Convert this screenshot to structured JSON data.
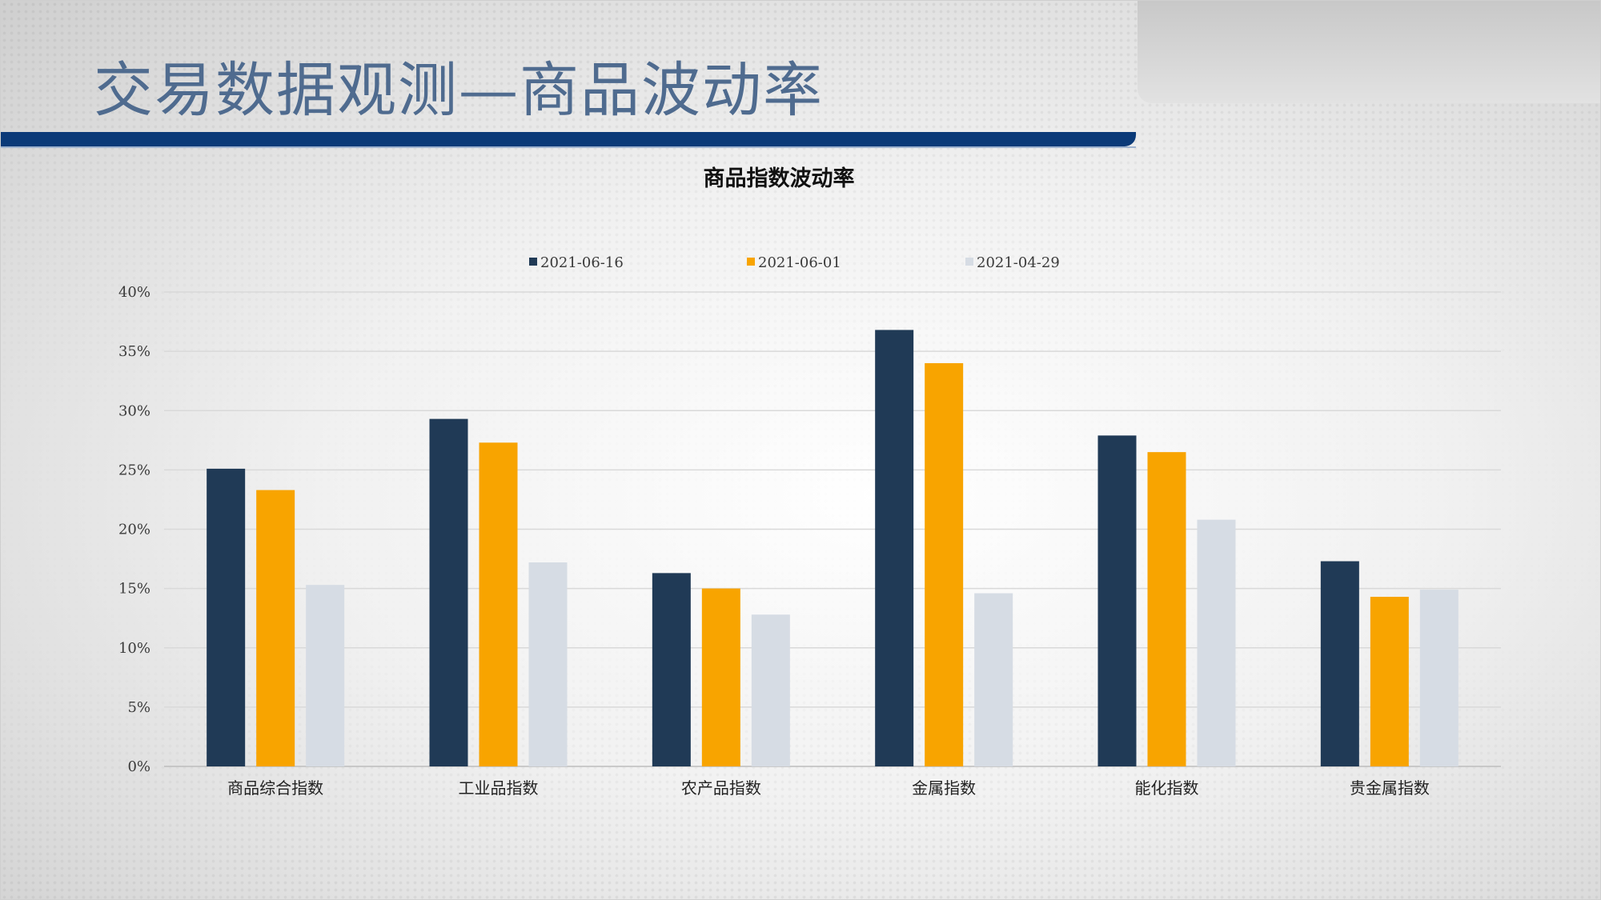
{
  "slide": {
    "title": "交易数据观测—商品波动率"
  },
  "chart_data": {
    "type": "bar",
    "title": "商品指数波动率",
    "xlabel": "",
    "ylabel": "",
    "categories": [
      "商品综合指数",
      "工业品指数",
      "农产品指数",
      "金属指数",
      "能化指数",
      "贵金属指数"
    ],
    "series": [
      {
        "name": "2021-06-16",
        "color": "#203a56",
        "values": [
          25.1,
          29.3,
          16.3,
          36.8,
          27.9,
          17.3
        ]
      },
      {
        "name": "2021-06-01",
        "color": "#f8a400",
        "values": [
          23.3,
          27.3,
          15.0,
          34.0,
          26.5,
          14.3
        ]
      },
      {
        "name": "2021-04-29",
        "color": "#d6dce4",
        "values": [
          15.3,
          17.2,
          12.8,
          14.6,
          20.8,
          14.9
        ]
      }
    ],
    "ylim": [
      0,
      40
    ],
    "yticks": [
      0,
      5,
      10,
      15,
      20,
      25,
      30,
      35,
      40
    ],
    "ytick_labels": [
      "0%",
      "5%",
      "10%",
      "15%",
      "20%",
      "25%",
      "30%",
      "35%",
      "40%"
    ],
    "grid": true,
    "legend_position": "top-center"
  }
}
